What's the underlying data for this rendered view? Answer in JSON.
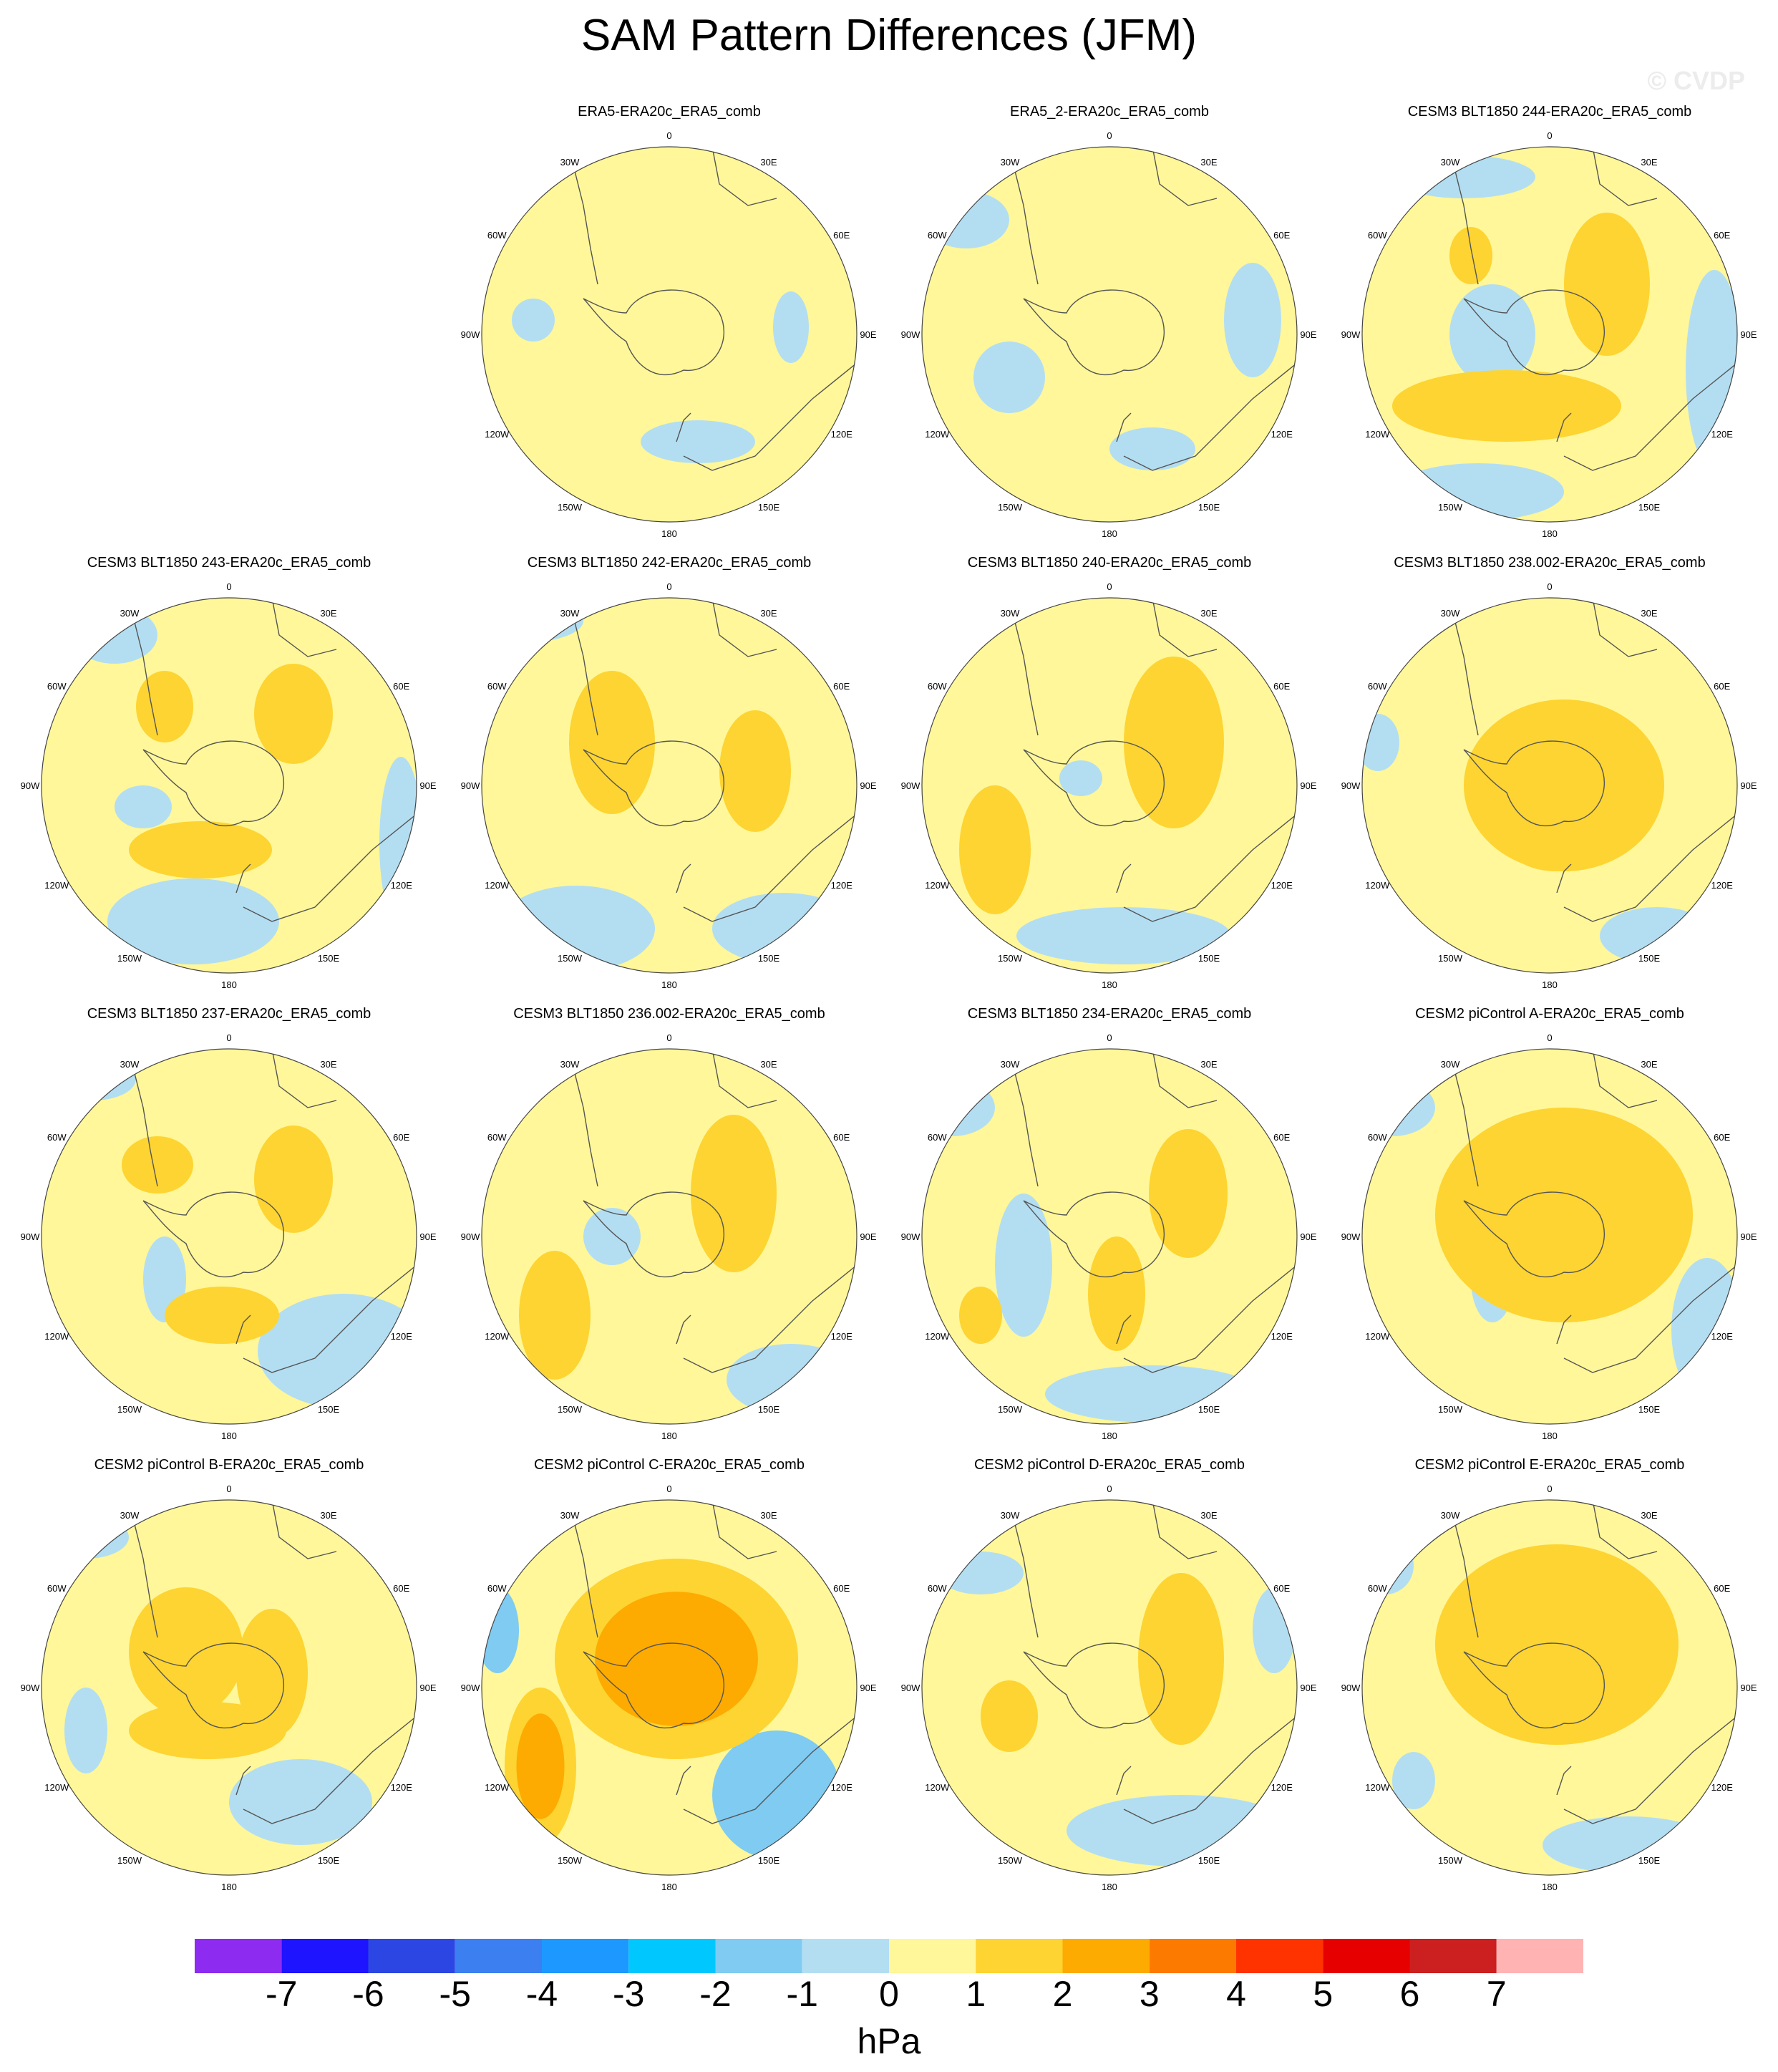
{
  "title": "SAM Pattern Differences (JFM)",
  "watermark": "© CVDP",
  "units": "hPa",
  "colors": {
    "background_positive": "#fff799",
    "ocean_negative": "#b3def2",
    "coast": "#555555",
    "bins": [
      "#8d2bf0",
      "#1e14ff",
      "#2c46e3",
      "#3b7ff0",
      "#1d98ff",
      "#00c8ff",
      "#7fcbf2",
      "#b3def2",
      "#fff799",
      "#fdd431",
      "#fdab00",
      "#fd7a00",
      "#ff3300",
      "#e60000",
      "#cc1f1f",
      "#ffb3b3"
    ]
  },
  "colorbar": {
    "labels": [
      "-7",
      "-6",
      "-5",
      "-4",
      "-3",
      "-2",
      "-1",
      "0",
      "1",
      "2",
      "3",
      "4",
      "5",
      "6",
      "7"
    ]
  },
  "map_labels": {
    "top": "0",
    "tr": "30E",
    "right_upper": "60E",
    "right": "90E",
    "right_lower": "120E",
    "br": "150E",
    "bottom": "180",
    "bl": "150W",
    "left_lower": "120W",
    "left": "90W",
    "left_upper": "60W",
    "tl": "30W"
  },
  "chart_data": [
    {
      "type": "heatmap",
      "title": "ERA5-ERA20c_ERA5_comb",
      "max_level": 1,
      "min_level": -1
    },
    {
      "type": "heatmap",
      "title": "ERA5_2-ERA20c_ERA5_comb",
      "max_level": 1,
      "min_level": -1
    },
    {
      "type": "heatmap",
      "title": "CESM3 BLT1850 244-ERA20c_ERA5_comb",
      "max_level": 2,
      "min_level": -1
    },
    {
      "type": "heatmap",
      "title": "CESM3 BLT1850 243-ERA20c_ERA5_comb",
      "max_level": 2,
      "min_level": -1
    },
    {
      "type": "heatmap",
      "title": "CESM3 BLT1850 242-ERA20c_ERA5_comb",
      "max_level": 2,
      "min_level": -1
    },
    {
      "type": "heatmap",
      "title": "CESM3 BLT1850 240-ERA20c_ERA5_comb",
      "max_level": 2,
      "min_level": -1
    },
    {
      "type": "heatmap",
      "title": "CESM3 BLT1850 238.002-ERA20c_ERA5_comb",
      "max_level": 2,
      "min_level": -1
    },
    {
      "type": "heatmap",
      "title": "CESM3 BLT1850 237-ERA20c_ERA5_comb",
      "max_level": 2,
      "min_level": -1
    },
    {
      "type": "heatmap",
      "title": "CESM3 BLT1850 236.002-ERA20c_ERA5_comb",
      "max_level": 2,
      "min_level": -1
    },
    {
      "type": "heatmap",
      "title": "CESM3 BLT1850 234-ERA20c_ERA5_comb",
      "max_level": 2,
      "min_level": -1
    },
    {
      "type": "heatmap",
      "title": "CESM2 piControl A-ERA20c_ERA5_comb",
      "max_level": 2,
      "min_level": -1
    },
    {
      "type": "heatmap",
      "title": "CESM2 piControl B-ERA20c_ERA5_comb",
      "max_level": 2,
      "min_level": -1
    },
    {
      "type": "heatmap",
      "title": "CESM2 piControl C-ERA20c_ERA5_comb",
      "max_level": 3,
      "min_level": -2
    },
    {
      "type": "heatmap",
      "title": "CESM2 piControl D-ERA20c_ERA5_comb",
      "max_level": 2,
      "min_level": -1
    },
    {
      "type": "heatmap",
      "title": "CESM2 piControl E-ERA20c_ERA5_comb",
      "max_level": 2,
      "min_level": -1
    }
  ]
}
